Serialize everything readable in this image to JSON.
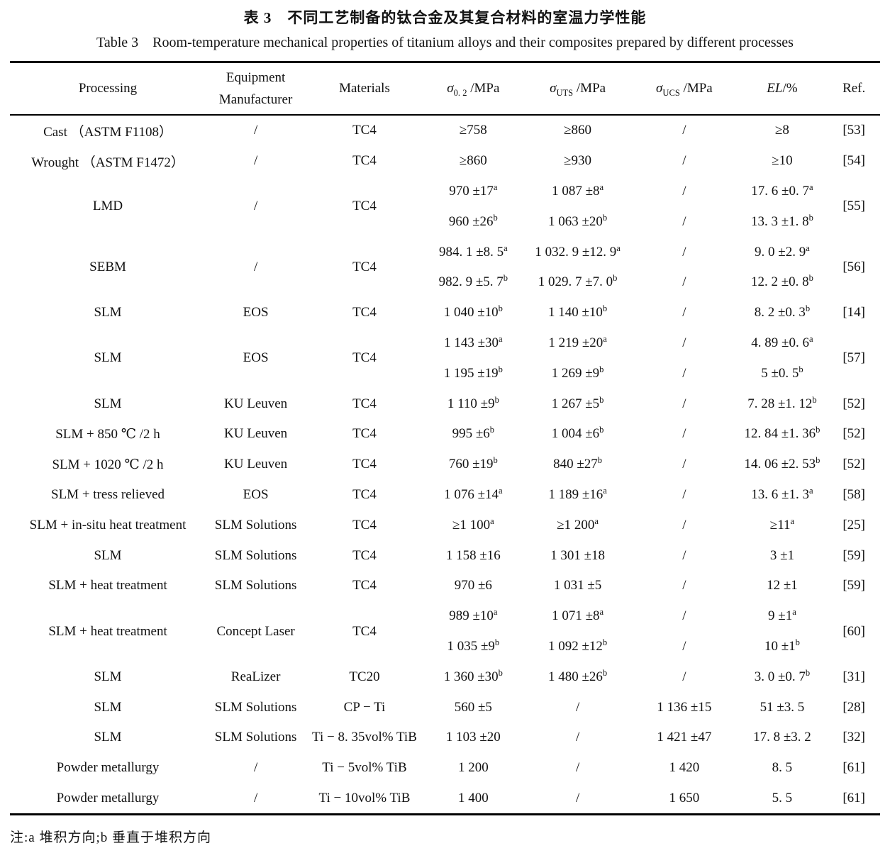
{
  "titles": {
    "zh": "表 3 不同工艺制备的钛合金及其复合材料的室温力学性能",
    "en": "Table 3 Room-temperature mechanical properties of titanium alloys and their composites prepared by different processes"
  },
  "footnote": "注:a 堆积方向;b 垂直于堆积方向",
  "table": {
    "columns": [
      {
        "id": "processing",
        "label": "Processing",
        "width": "22.5%"
      },
      {
        "id": "equipment",
        "lines": [
          "Equipment",
          "Manufacturer"
        ],
        "width": "11.5%"
      },
      {
        "id": "materials",
        "label": "Materials",
        "width": "13.5%"
      },
      {
        "id": "s02",
        "math": {
          "symbol": "σ",
          "sub": "0. 2",
          "rest": " /MPa"
        },
        "width": "11.5%"
      },
      {
        "id": "uts",
        "math": {
          "symbol": "σ",
          "sub": "UTS",
          "rest": " /MPa"
        },
        "width": "12.5%"
      },
      {
        "id": "ucs",
        "math": {
          "symbol": "σ",
          "sub": "UCS",
          "rest": " /MPa"
        },
        "width": "12%"
      },
      {
        "id": "el",
        "math": {
          "italic": "EL",
          "rest": "/%"
        },
        "width": "10.5%"
      },
      {
        "id": "ref",
        "label": "Ref.",
        "width": "6%"
      }
    ],
    "rows": [
      {
        "processing": "Cast （ASTM F1108）",
        "equipment": "/",
        "materials": "TC4",
        "ref": "[53]",
        "values": [
          {
            "s02": "≥758",
            "uts": "≥860",
            "ucs": "/",
            "el": "≥8"
          }
        ]
      },
      {
        "processing": "Wrought （ASTM F1472）",
        "equipment": "/",
        "materials": "TC4",
        "ref": "[54]",
        "values": [
          {
            "s02": "≥860",
            "uts": "≥930",
            "ucs": "/",
            "el": "≥10"
          }
        ]
      },
      {
        "processing": "LMD",
        "equipment": "/",
        "materials": "TC4",
        "ref": "[55]",
        "values": [
          {
            "s02": "970 ±17^a",
            "uts": "1 087 ±8^a",
            "ucs": "/",
            "el": "17. 6 ±0. 7^a"
          },
          {
            "s02": "960 ±26^b",
            "uts": "1 063 ±20^b",
            "ucs": "/",
            "el": "13. 3 ±1. 8^b"
          }
        ]
      },
      {
        "processing": "SEBM",
        "equipment": "/",
        "materials": "TC4",
        "ref": "[56]",
        "values": [
          {
            "s02": "984. 1 ±8. 5^a",
            "uts": "1 032. 9 ±12. 9^a",
            "ucs": "/",
            "el": "9. 0 ±2. 9^a"
          },
          {
            "s02": "982. 9 ±5. 7^b",
            "uts": "1 029. 7 ±7. 0^b",
            "ucs": "/",
            "el": "12. 2 ±0. 8^b"
          }
        ]
      },
      {
        "processing": "SLM",
        "equipment": "EOS",
        "materials": "TC4",
        "ref": "[14]",
        "values": [
          {
            "s02": "1 040 ±10^b",
            "uts": "1 140 ±10^b",
            "ucs": "/",
            "el": "8. 2 ±0. 3^b"
          }
        ]
      },
      {
        "processing": "SLM",
        "equipment": "EOS",
        "materials": "TC4",
        "ref": "[57]",
        "values": [
          {
            "s02": "1 143 ±30^a",
            "uts": "1 219 ±20^a",
            "ucs": "/",
            "el": "4. 89 ±0. 6^a"
          },
          {
            "s02": "1 195 ±19^b",
            "uts": "1 269 ±9^b",
            "ucs": "/",
            "el": "5 ±0. 5^b"
          }
        ]
      },
      {
        "processing": "SLM",
        "equipment": "KU Leuven",
        "materials": "TC4",
        "ref": "[52]",
        "values": [
          {
            "s02": "1 110 ±9^b",
            "uts": "1 267 ±5^b",
            "ucs": "/",
            "el": "7. 28 ±1. 12^b"
          }
        ]
      },
      {
        "processing": "SLM + 850 ℃ /2 h",
        "equipment": "KU Leuven",
        "materials": "TC4",
        "ref": "[52]",
        "values": [
          {
            "s02": "995 ±6^b",
            "uts": "1 004 ±6^b",
            "ucs": "/",
            "el": "12. 84 ±1. 36^b"
          }
        ]
      },
      {
        "processing": "SLM + 1020 ℃ /2 h",
        "equipment": "KU Leuven",
        "materials": "TC4",
        "ref": "[52]",
        "values": [
          {
            "s02": "760 ±19^b",
            "uts": "840 ±27^b",
            "ucs": "/",
            "el": "14. 06 ±2. 53^b"
          }
        ]
      },
      {
        "processing": "SLM + tress relieved",
        "equipment": "EOS",
        "materials": "TC4",
        "ref": "[58]",
        "values": [
          {
            "s02": "1 076 ±14^a",
            "uts": "1 189 ±16^a",
            "ucs": "/",
            "el": "13. 6 ±1. 3^a"
          }
        ]
      },
      {
        "processing": "SLM + in-situ heat treatment",
        "equipment": "SLM Solutions",
        "materials": "TC4",
        "ref": "[25]",
        "values": [
          {
            "s02": "≥1 100^a",
            "uts": "≥1 200^a",
            "ucs": "/",
            "el": "≥11^a"
          }
        ]
      },
      {
        "processing": "SLM",
        "equipment": "SLM Solutions",
        "materials": "TC4",
        "ref": "[59]",
        "values": [
          {
            "s02": "1 158 ±16",
            "uts": "1 301 ±18",
            "ucs": "/",
            "el": "3 ±1"
          }
        ]
      },
      {
        "processing": "SLM +  heat treatment",
        "equipment": "SLM Solutions",
        "materials": "TC4",
        "ref": "[59]",
        "values": [
          {
            "s02": "970 ±6",
            "uts": "1 031 ±5",
            "ucs": "/",
            "el": "12 ±1"
          }
        ]
      },
      {
        "processing": "SLM + heat treatment",
        "equipment": "Concept Laser",
        "materials": "TC4",
        "ref": "[60]",
        "values": [
          {
            "s02": "989 ±10^a",
            "uts": "1 071 ±8^a",
            "ucs": "/",
            "el": "9 ±1^a"
          },
          {
            "s02": "1 035 ±9^b",
            "uts": "1 092 ±12^b",
            "ucs": "/",
            "el": "10 ±1^b"
          }
        ]
      },
      {
        "processing": "SLM",
        "equipment": "ReaLizer",
        "materials": "TC20",
        "ref": "[31]",
        "values": [
          {
            "s02": "1 360 ±30^b",
            "uts": "1 480 ±26^b",
            "ucs": "/",
            "el": "3. 0 ±0. 7^b"
          }
        ]
      },
      {
        "processing": "SLM",
        "equipment": "SLM Solutions",
        "materials": "CP − Ti",
        "ref": "[28]",
        "values": [
          {
            "s02": "560 ±5",
            "uts": "/",
            "ucs": "1 136 ±15",
            "el": "51 ±3. 5"
          }
        ]
      },
      {
        "processing": "SLM",
        "equipment": "SLM Solutions",
        "materials": "Ti − 8. 35vol%  TiB",
        "ref": "[32]",
        "values": [
          {
            "s02": "1 103 ±20",
            "uts": "/",
            "ucs": "1 421 ±47",
            "el": "17. 8 ±3. 2"
          }
        ]
      },
      {
        "processing": "Powder metallurgy",
        "equipment": "/",
        "materials": "Ti − 5vol%  TiB",
        "ref": "[61]",
        "values": [
          {
            "s02": "1 200",
            "uts": "/",
            "ucs": "1 420",
            "el": "8. 5"
          }
        ]
      },
      {
        "processing": "Powder metallurgy",
        "equipment": "/",
        "materials": "Ti − 10vol%  TiB",
        "ref": "[61]",
        "values": [
          {
            "s02": "1 400",
            "uts": "/",
            "ucs": "1 650",
            "el": "5. 5"
          }
        ]
      }
    ]
  }
}
